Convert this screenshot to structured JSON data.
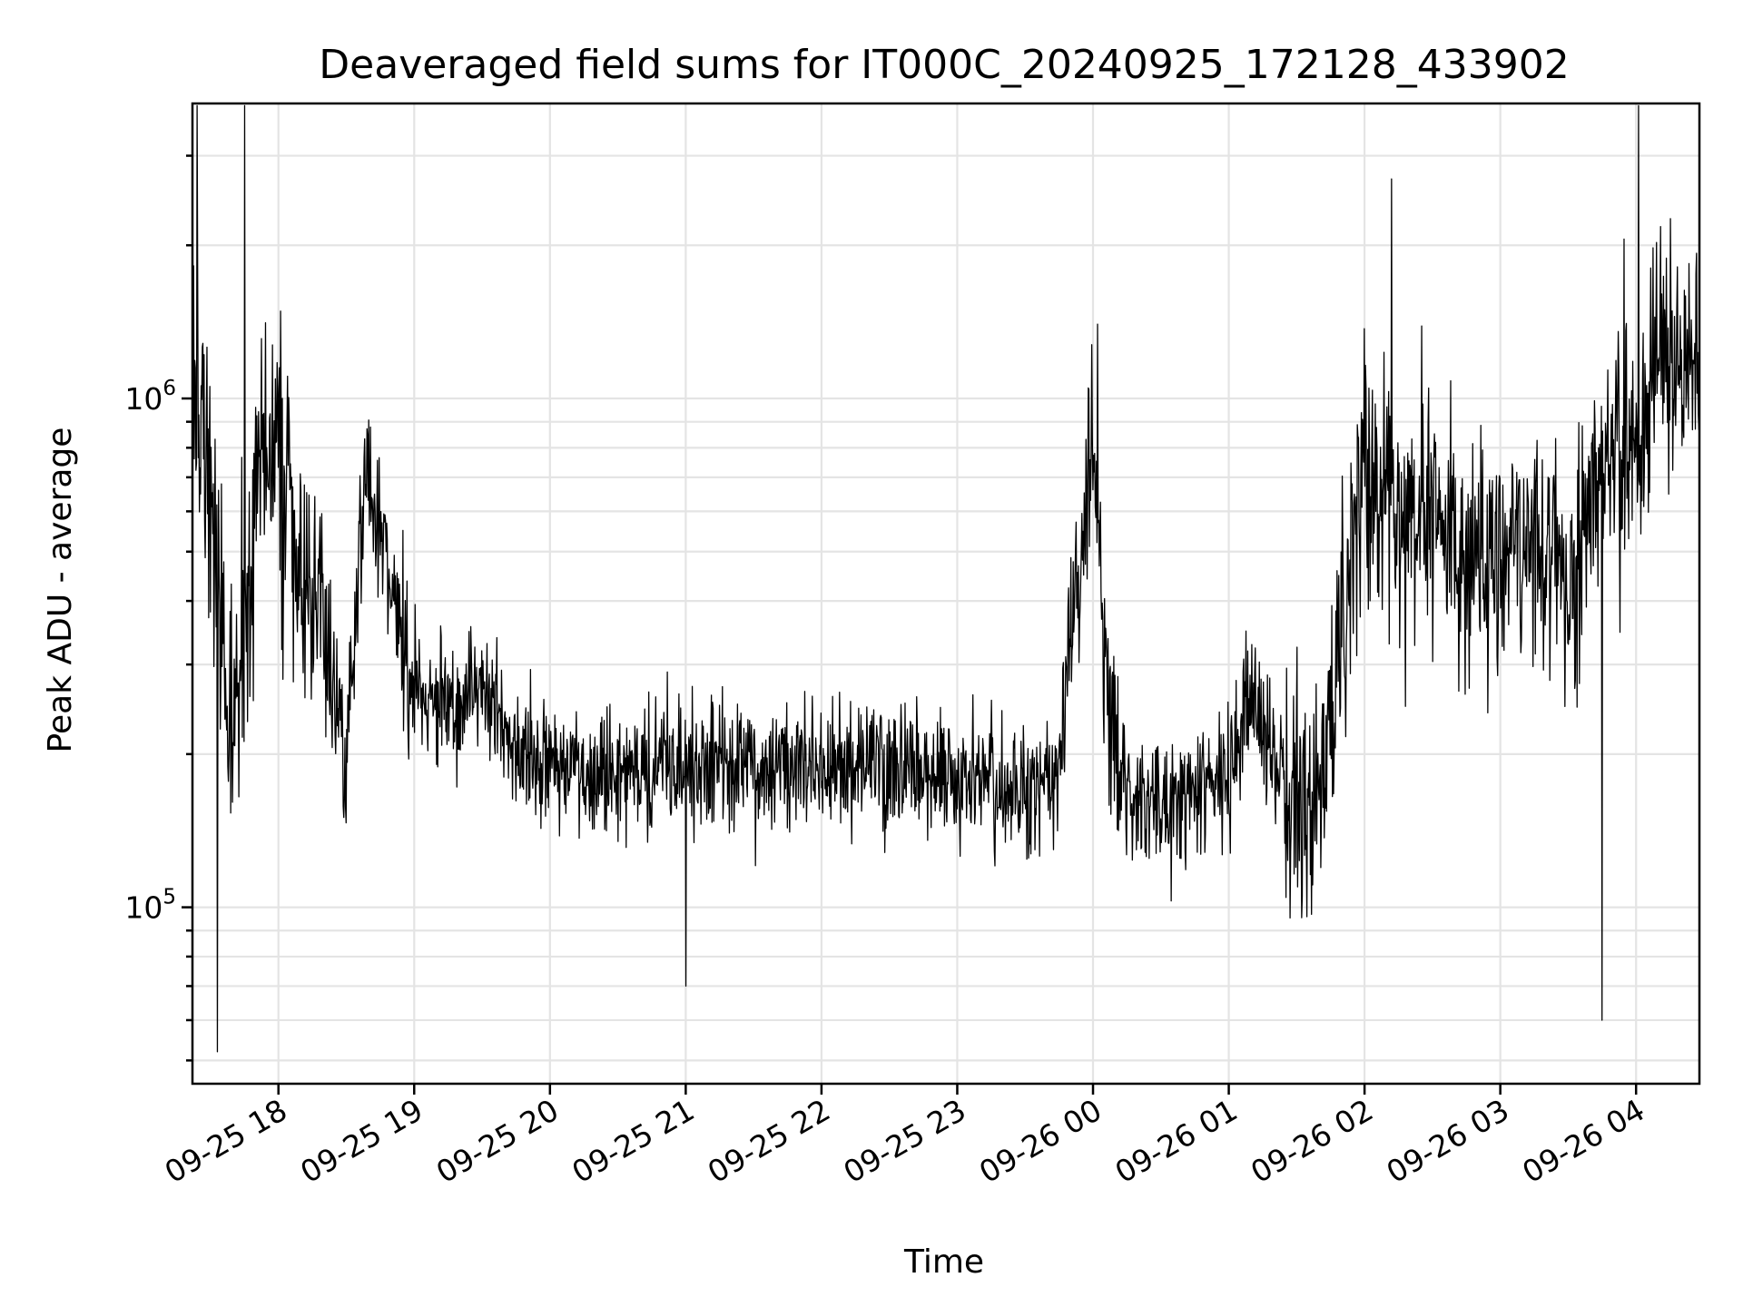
{
  "chart_data": {
    "type": "line",
    "title": "Deaveraged field sums for IT000C_20240925_172128_433902",
    "xlabel": "Time",
    "ylabel": "Peak ADU - average",
    "yscale": "log",
    "ylim": [
      45000,
      3800000
    ],
    "xlim": [
      "2024-09-25 17:22",
      "2024-09-26 04:28"
    ],
    "grid": true,
    "line_color": "#000000",
    "x_ticks": [
      {
        "value": "2024-09-25 18:00",
        "label": "09-25 18"
      },
      {
        "value": "2024-09-25 19:00",
        "label": "09-25 19"
      },
      {
        "value": "2024-09-25 20:00",
        "label": "09-25 20"
      },
      {
        "value": "2024-09-25 21:00",
        "label": "09-25 21"
      },
      {
        "value": "2024-09-25 22:00",
        "label": "09-25 22"
      },
      {
        "value": "2024-09-25 23:00",
        "label": "09-25 23"
      },
      {
        "value": "2024-09-26 00:00",
        "label": "09-26 00"
      },
      {
        "value": "2024-09-26 01:00",
        "label": "09-26 01"
      },
      {
        "value": "2024-09-26 02:00",
        "label": "09-26 02"
      },
      {
        "value": "2024-09-26 03:00",
        "label": "09-26 03"
      },
      {
        "value": "2024-09-26 04:00",
        "label": "09-26 04"
      }
    ],
    "y_ticks": [
      {
        "value": 100000,
        "base": "10",
        "exp": "5"
      },
      {
        "value": 1000000,
        "base": "10",
        "exp": "6"
      }
    ],
    "series": [
      {
        "x": [
          "2024-09-25 17:22",
          "2024-09-25 17:30",
          "2024-09-25 17:38",
          "2024-09-25 17:45",
          "2024-09-25 17:52",
          "2024-09-25 18:00",
          "2024-09-25 18:08",
          "2024-09-25 18:15",
          "2024-09-25 18:22",
          "2024-09-25 18:30",
          "2024-09-25 18:38",
          "2024-09-25 18:45",
          "2024-09-25 18:52",
          "2024-09-25 19:00",
          "2024-09-25 19:15",
          "2024-09-25 19:30",
          "2024-09-25 19:45",
          "2024-09-25 20:00",
          "2024-09-25 20:30",
          "2024-09-25 21:00",
          "2024-09-25 21:30",
          "2024-09-25 22:00",
          "2024-09-25 22:30",
          "2024-09-25 23:00",
          "2024-09-25 23:30",
          "2024-09-25 23:45",
          "2024-09-25 23:52",
          "2024-09-26 00:00",
          "2024-09-26 00:08",
          "2024-09-26 00:15",
          "2024-09-26 00:30",
          "2024-09-26 00:45",
          "2024-09-26 01:00",
          "2024-09-26 01:10",
          "2024-09-26 01:20",
          "2024-09-26 01:30",
          "2024-09-26 01:40",
          "2024-09-26 01:50",
          "2024-09-26 02:00",
          "2024-09-26 02:15",
          "2024-09-26 02:30",
          "2024-09-26 02:45",
          "2024-09-26 03:00",
          "2024-09-26 03:15",
          "2024-09-26 03:30",
          "2024-09-26 03:45",
          "2024-09-26 04:00",
          "2024-09-26 04:10",
          "2024-09-26 04:20",
          "2024-09-26 04:28"
        ],
        "values": [
          1100000,
          700000,
          200000,
          350000,
          700000,
          800000,
          450000,
          500000,
          300000,
          200000,
          700000,
          550000,
          380000,
          280000,
          240000,
          270000,
          200000,
          190000,
          190000,
          185000,
          190000,
          185000,
          185000,
          180000,
          170000,
          190000,
          400000,
          800000,
          200000,
          170000,
          160000,
          165000,
          175000,
          260000,
          190000,
          170000,
          180000,
          350000,
          700000,
          600000,
          550000,
          450000,
          500000,
          520000,
          400000,
          700000,
          900000,
          1200000,
          1250000,
          1250000
        ],
        "peaks_high": [
          {
            "x": "2024-09-25 17:24",
            "y": 3800000
          },
          {
            "x": "2024-09-25 17:45",
            "y": 3900000
          },
          {
            "x": "2024-09-26 00:02",
            "y": 1400000
          },
          {
            "x": "2024-09-26 02:12",
            "y": 2700000
          },
          {
            "x": "2024-09-26 04:01",
            "y": 3800000
          }
        ],
        "peaks_low": [
          {
            "x": "2024-09-25 17:33",
            "y": 52000
          },
          {
            "x": "2024-09-25 21:00",
            "y": 70000
          },
          {
            "x": "2024-09-26 03:45",
            "y": 60000
          }
        ]
      }
    ]
  }
}
